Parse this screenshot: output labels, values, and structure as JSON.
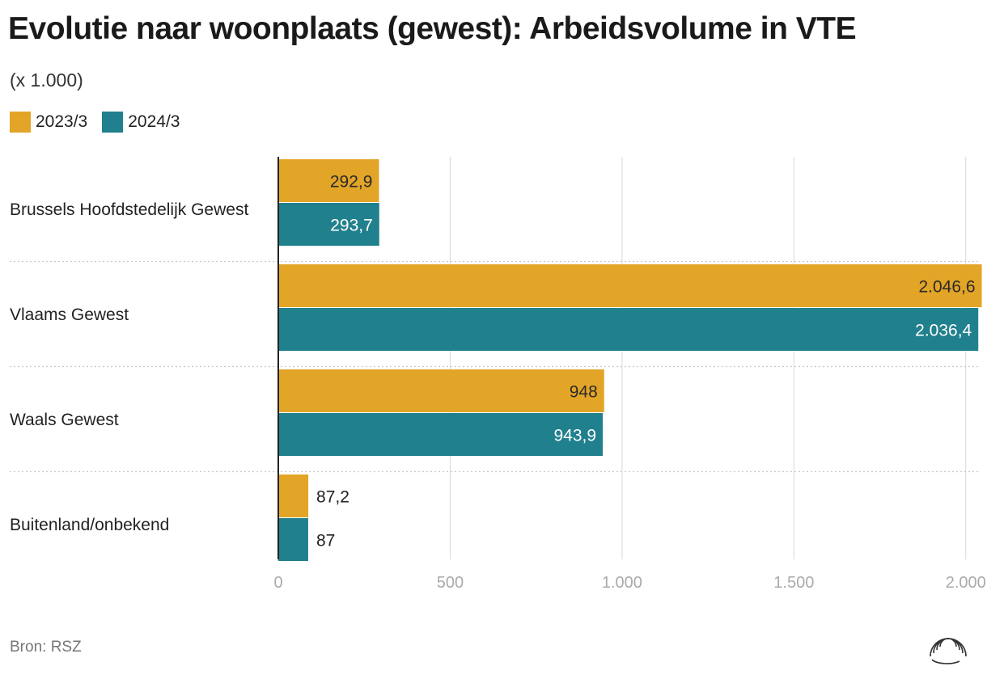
{
  "title": "Evolutie naar woonplaats (gewest): Arbeidsvolume in VTE",
  "subtitle": "(x 1.000)",
  "source": "Bron: RSZ",
  "colors": {
    "series1": "#E3A527",
    "series2": "#21808D",
    "grid": "#d9d9d9",
    "axis": "#222222",
    "tick": "#aaaaaa"
  },
  "chart_data": {
    "type": "bar",
    "orientation": "horizontal",
    "categories": [
      "Brussels Hoofdstedelijk Gewest",
      "Vlaams Gewest",
      "Waals Gewest",
      "Buitenland/onbekend"
    ],
    "series": [
      {
        "name": "2023/3",
        "values": [
          292.9,
          2046.6,
          948,
          87.2
        ],
        "labels": [
          "292,9",
          "2.046,6",
          "948",
          "87,2"
        ]
      },
      {
        "name": "2024/3",
        "values": [
          293.7,
          2036.4,
          943.9,
          87
        ],
        "labels": [
          "293,7",
          "2.036,4",
          "943,9",
          "87"
        ]
      }
    ],
    "xlim": [
      0,
      2050
    ],
    "xticks": [
      0,
      500,
      1000,
      1500,
      2000
    ],
    "xtick_labels": [
      "0",
      "500",
      "1.000",
      "1.500",
      "2.000"
    ],
    "grid": true,
    "legend_position": "top-left"
  }
}
